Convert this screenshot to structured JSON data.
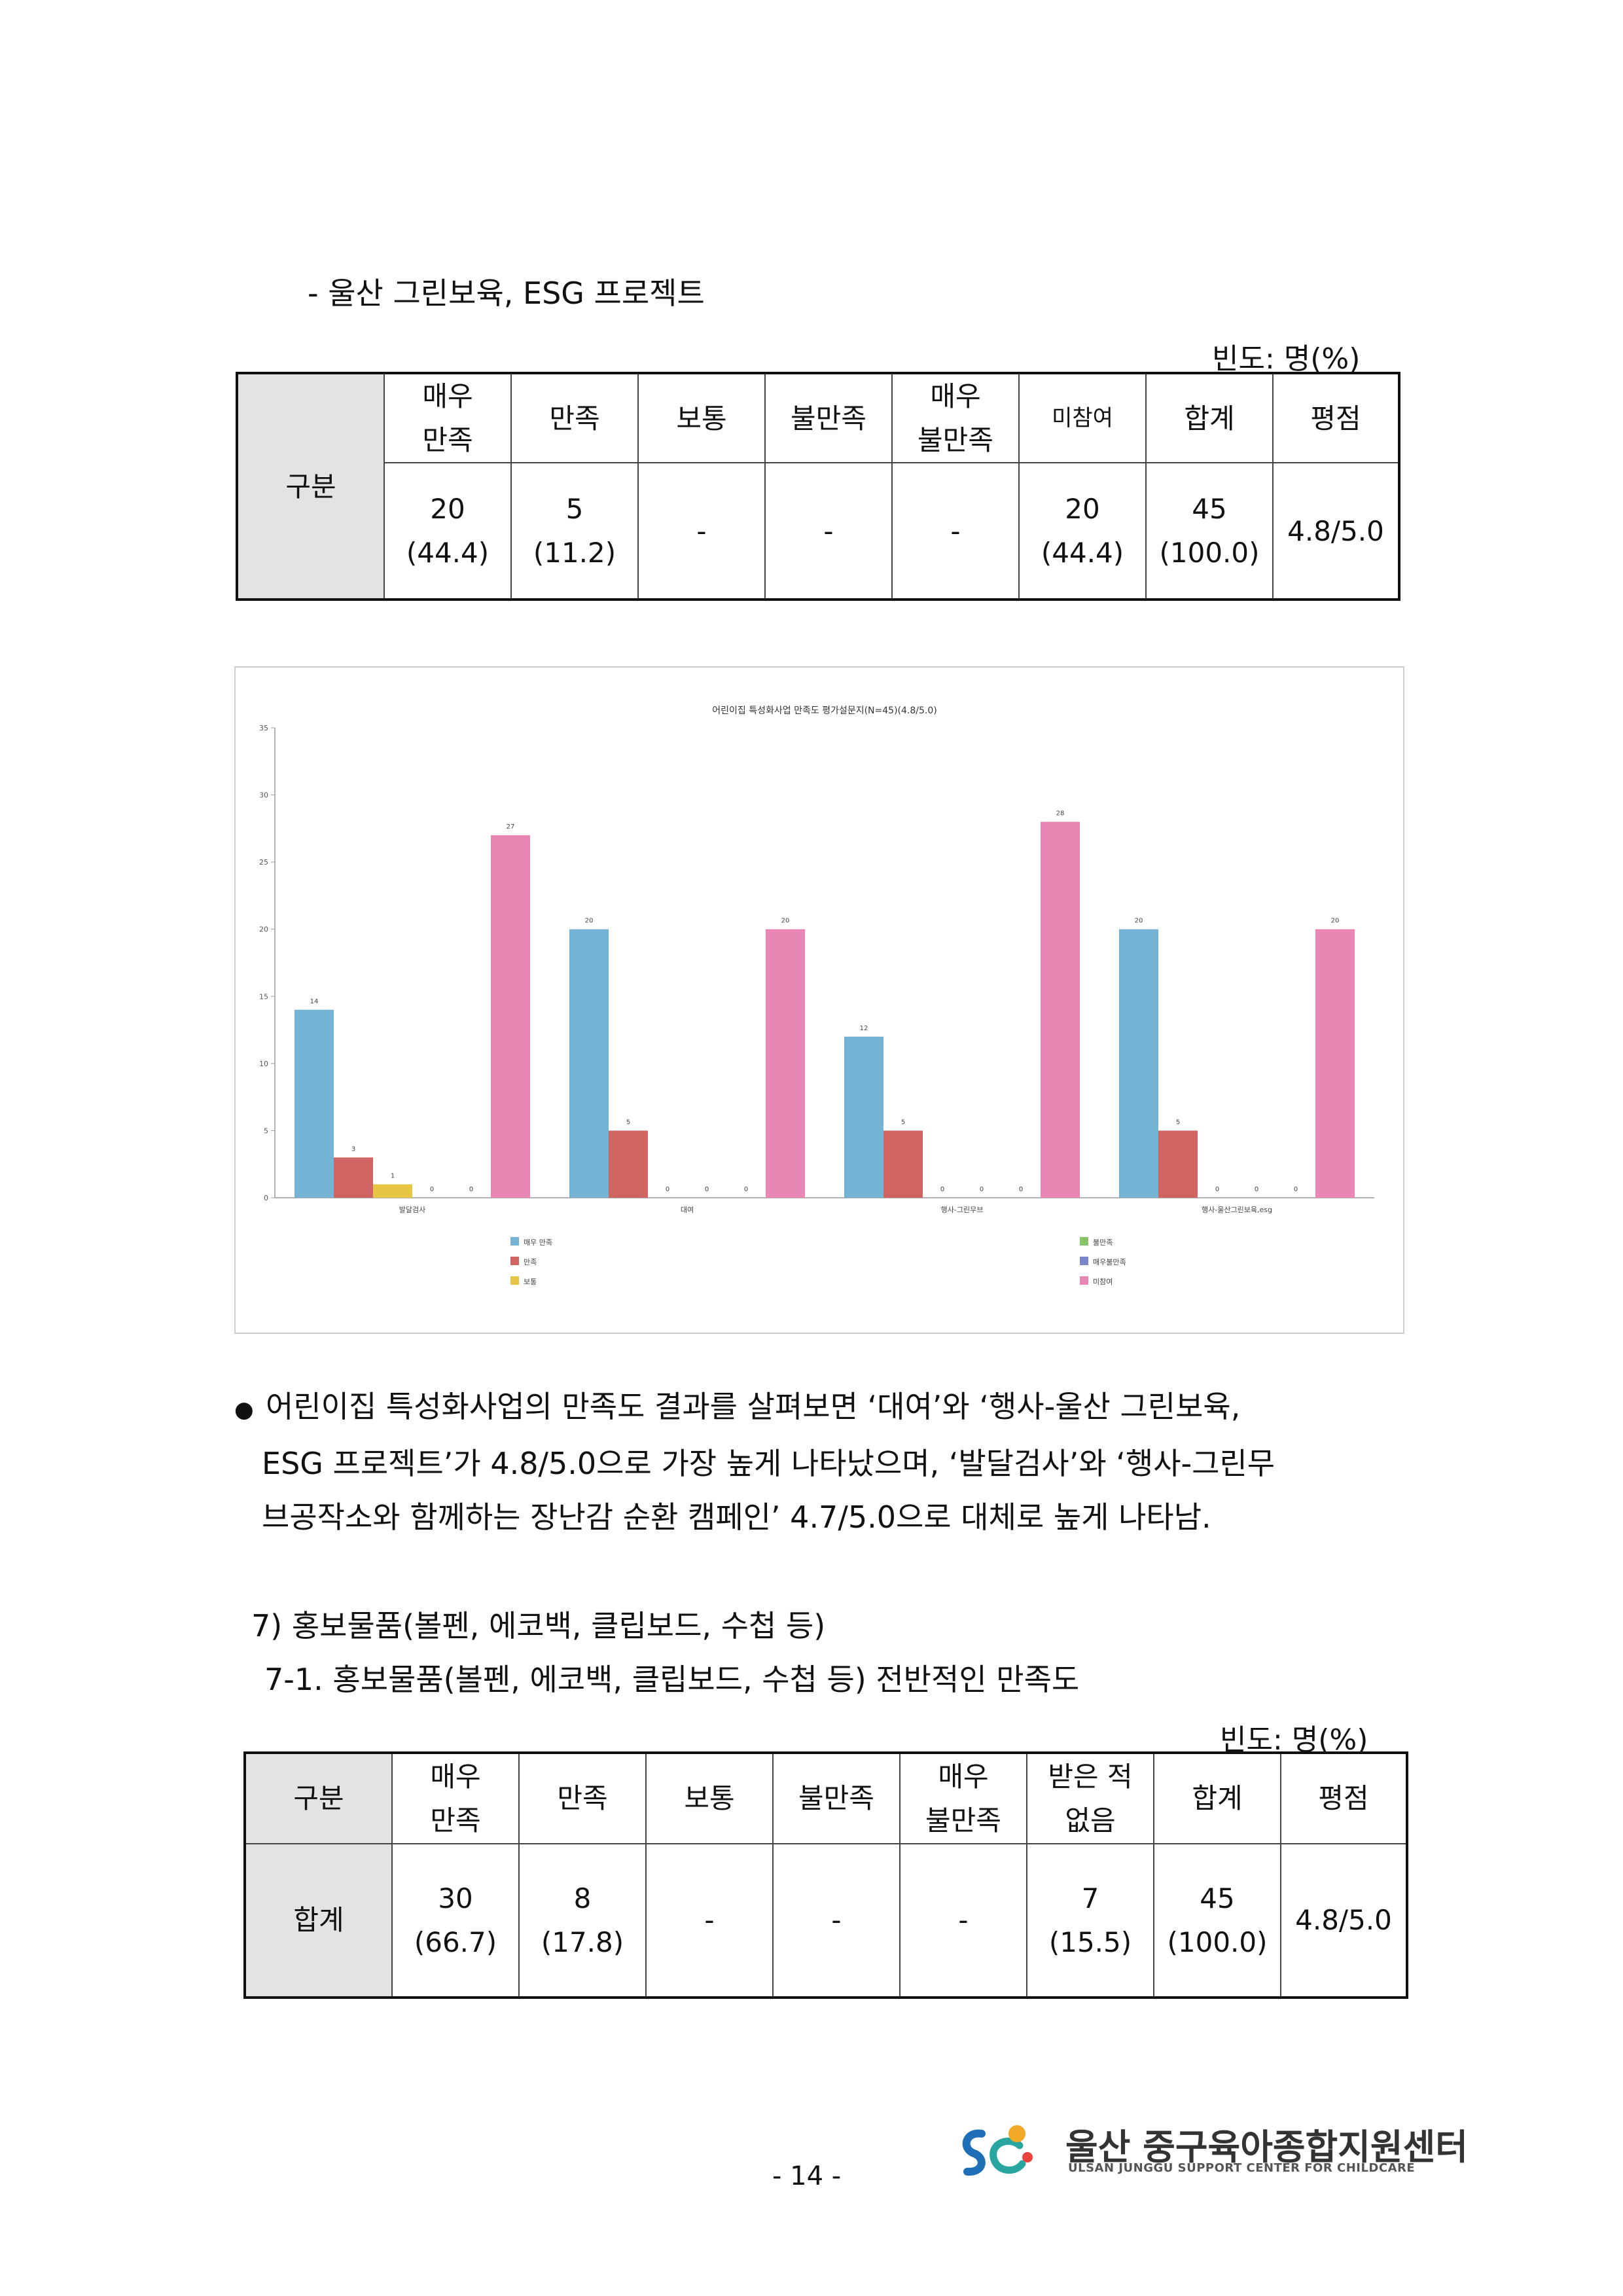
{
  "section1": {
    "heading": "- 울산 그린보육, ESG 프로젝트",
    "unit": "빈도: 명(%)",
    "table": {
      "row_header": "구분",
      "columns": [
        {
          "line1": "매우",
          "line2": "만족"
        },
        {
          "line1": "만족",
          "line2": ""
        },
        {
          "line1": "보통",
          "line2": ""
        },
        {
          "line1": "불만족",
          "line2": ""
        },
        {
          "line1": "매우",
          "line2": "불만족"
        },
        {
          "line1": "미참여",
          "line2": ""
        },
        {
          "line1": "합계",
          "line2": ""
        },
        {
          "line1": "평점",
          "line2": ""
        }
      ],
      "values": [
        {
          "line1": "20",
          "line2": "(44.4)"
        },
        {
          "line1": "5",
          "line2": "(11.2)"
        },
        {
          "line1": "-",
          "line2": ""
        },
        {
          "line1": "-",
          "line2": ""
        },
        {
          "line1": "-",
          "line2": ""
        },
        {
          "line1": "20",
          "line2": "(44.4)"
        },
        {
          "line1": "45",
          "line2": "(100.0)"
        },
        {
          "line1": "4.8/5.0",
          "line2": ""
        }
      ]
    }
  },
  "chart_data": {
    "type": "bar",
    "title": "어린이집 특성화사업 만족도 평가설문지(N=45)(4.8/5.0)",
    "categories": [
      "발달검사",
      "대여",
      "행사-그린무브",
      "행사-울산그린보육,esg"
    ],
    "ylim": [
      0,
      35
    ],
    "yticks": [
      0,
      5,
      10,
      15,
      20,
      25,
      30,
      35
    ],
    "grid": false,
    "legend_position": "bottom",
    "series": [
      {
        "name": "매우 만족",
        "values": [
          14,
          20,
          12,
          20
        ],
        "color": "#74b3d4"
      },
      {
        "name": "만족",
        "values": [
          3,
          5,
          5,
          5
        ],
        "color": "#cf6462"
      },
      {
        "name": "보통",
        "values": [
          1,
          0,
          0,
          0
        ],
        "color": "#e9c545"
      },
      {
        "name": "불만족",
        "values": [
          0,
          0,
          0,
          0
        ],
        "color": "#88c36a"
      },
      {
        "name": "매우불만족",
        "values": [
          0,
          0,
          0,
          0
        ],
        "color": "#7a86c7"
      },
      {
        "name": "미참여",
        "values": [
          27,
          20,
          28,
          20
        ],
        "color": "#e887b3"
      }
    ]
  },
  "paragraph": {
    "bullet": "●",
    "lines": [
      "어린이집 특성화사업의 만족도 결과를 살펴보면 ‘대여’와 ‘행사-울산 그린보육,",
      "ESG 프로젝트’가 4.8/5.0으로 가장 높게 나타났으며, ‘발달검사’와 ‘행사-그린무",
      "브공작소와 함께하는 장난감 순환 캠페인’ 4.7/5.0으로 대체로 높게 나타남."
    ]
  },
  "section2": {
    "heading": "7) 홍보물품(볼펜, 에코백, 클립보드, 수첩 등)",
    "subheading": "7-1. 홍보물품(볼펜, 에코백, 클립보드, 수첩 등) 전반적인 만족도",
    "unit": "빈도: 명(%)",
    "table": {
      "row_header": "구분",
      "row_label": "합계",
      "columns": [
        {
          "line1": "매우",
          "line2": "만족"
        },
        {
          "line1": "만족",
          "line2": ""
        },
        {
          "line1": "보통",
          "line2": ""
        },
        {
          "line1": "불만족",
          "line2": ""
        },
        {
          "line1": "매우",
          "line2": "불만족"
        },
        {
          "line1": "받은 적",
          "line2": "없음"
        },
        {
          "line1": "합계",
          "line2": ""
        },
        {
          "line1": "평점",
          "line2": ""
        }
      ],
      "values": [
        {
          "line1": "30",
          "line2": "(66.7)"
        },
        {
          "line1": "8",
          "line2": "(17.8)"
        },
        {
          "line1": "-",
          "line2": ""
        },
        {
          "line1": "-",
          "line2": ""
        },
        {
          "line1": "-",
          "line2": ""
        },
        {
          "line1": "7",
          "line2": "(15.5)"
        },
        {
          "line1": "45",
          "line2": "(100.0)"
        },
        {
          "line1": "4.8/5.0",
          "line2": ""
        }
      ]
    }
  },
  "footer": {
    "page_number": "- 14 -",
    "org_name": "울산 중구육아종합지원센터",
    "org_name_en": "ULSAN JUNGGU SUPPORT CENTER FOR CHILDCARE",
    "logo_icon": "sci-logo-icon"
  }
}
